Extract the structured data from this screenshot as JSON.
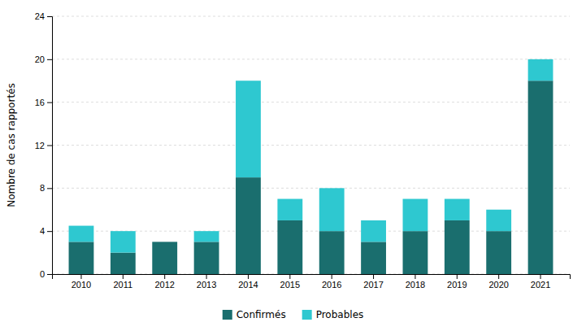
{
  "chart_data": {
    "type": "bar",
    "stacked": true,
    "categories": [
      "2010",
      "2011",
      "2012",
      "2013",
      "2014",
      "2015",
      "2016",
      "2017",
      "2018",
      "2019",
      "2020",
      "2021"
    ],
    "series": [
      {
        "name": "Confirmés",
        "color": "#1a6e6e",
        "values": [
          3,
          2,
          3,
          3,
          9,
          5,
          4,
          3,
          4,
          5,
          4,
          18
        ]
      },
      {
        "name": "Probables",
        "color": "#2ec8d0",
        "values": [
          1.5,
          2,
          0,
          1,
          9,
          2,
          4,
          2,
          3,
          2,
          2,
          2
        ]
      }
    ],
    "ylabel": "Nombre de cas rapportés",
    "ylim": [
      0,
      24
    ],
    "yticks": [
      0,
      4,
      8,
      12,
      16,
      20,
      24
    ],
    "grid": true,
    "legend": "bottom"
  }
}
